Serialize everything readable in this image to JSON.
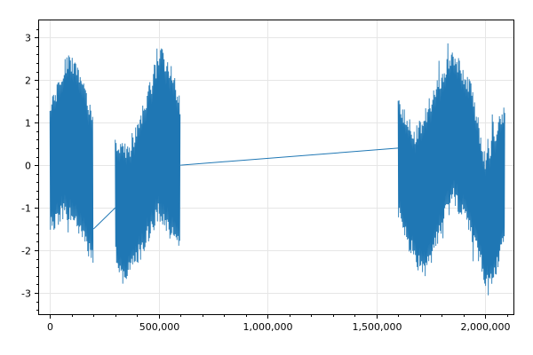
{
  "chart_data": {
    "type": "line",
    "title": "",
    "xlabel": "",
    "ylabel": "",
    "xlim": [
      -50000,
      2130000
    ],
    "ylim": [
      -3.5,
      3.4
    ],
    "grid": true,
    "legend": "none",
    "x_ticks": [
      0,
      500000,
      1000000,
      1500000,
      2000000
    ],
    "x_tick_labels": [
      "0",
      "500,000",
      "1,000,000",
      "1,500,000",
      "2,000,000"
    ],
    "y_ticks": [
      3,
      2,
      1,
      0,
      -1,
      -2,
      -3
    ],
    "y_tick_labels": [
      "3",
      "2",
      "1",
      "0",
      "-1",
      "-2",
      "-3"
    ],
    "series": [
      {
        "color": "#1f77b4",
        "style": "dense oscillating signal",
        "segments": [
          {
            "x_start": 0,
            "x_end": 200000,
            "envelope_top": [
              [
                0,
                1.5
              ],
              [
                80000,
                2.7
              ],
              [
                150000,
                2.3
              ],
              [
                200000,
                1.1
              ]
            ],
            "envelope_bottom": [
              [
                0,
                -1.7
              ],
              [
                60000,
                -1.3
              ],
              [
                130000,
                -1.6
              ],
              [
                200000,
                -2.4
              ]
            ]
          },
          {
            "x_start": 300000,
            "x_end": 600000,
            "envelope_top": [
              [
                300000,
                0.7
              ],
              [
                360000,
                0.5
              ],
              [
                450000,
                1.8
              ],
              [
                510000,
                2.8
              ],
              [
                560000,
                2.3
              ],
              [
                600000,
                1.6
              ]
            ],
            "envelope_bottom": [
              [
                300000,
                -2.2
              ],
              [
                340000,
                -2.9
              ],
              [
                420000,
                -2.2
              ],
              [
                500000,
                -1.3
              ],
              [
                560000,
                -1.8
              ],
              [
                600000,
                -2.2
              ]
            ]
          },
          {
            "x_start": 1600000,
            "x_end": 2090000,
            "envelope_top": [
              [
                1600000,
                1.6
              ],
              [
                1680000,
                0.9
              ],
              [
                1780000,
                2.0
              ],
              [
                1850000,
                2.8
              ],
              [
                1930000,
                2.1
              ],
              [
                2000000,
                0.3
              ],
              [
                2050000,
                1.0
              ],
              [
                2090000,
                1.5
              ]
            ],
            "envelope_bottom": [
              [
                1600000,
                -1.3
              ],
              [
                1670000,
                -2.3
              ],
              [
                1720000,
                -2.8
              ],
              [
                1800000,
                -1.6
              ],
              [
                1850000,
                -0.9
              ],
              [
                1940000,
                -1.8
              ],
              [
                2010000,
                -3.0
              ],
              [
                2050000,
                -2.6
              ],
              [
                2090000,
                -1.8
              ]
            ]
          }
        ],
        "connectors": [
          {
            "from": [
              200000,
              -1.5
            ],
            "to": [
              300000,
              -1.0
            ]
          },
          {
            "from": [
              600000,
              0.0
            ],
            "to": [
              1600000,
              0.4
            ]
          }
        ]
      }
    ]
  }
}
